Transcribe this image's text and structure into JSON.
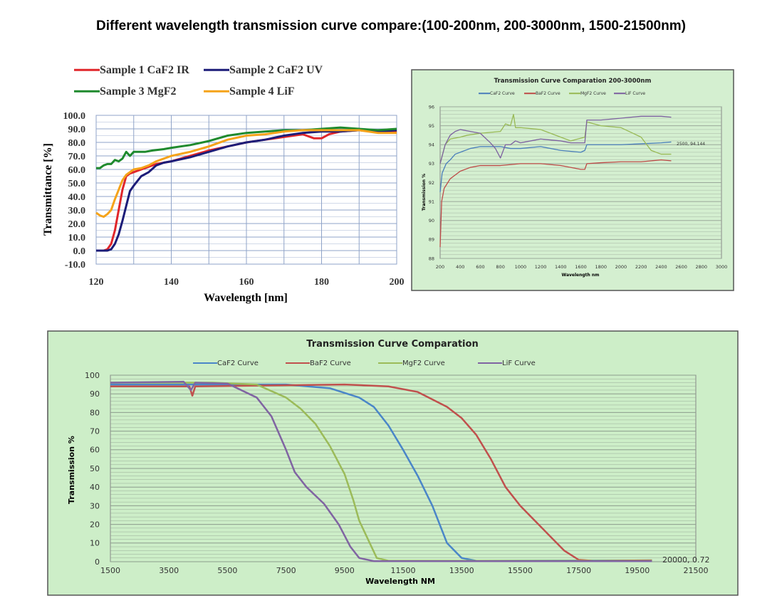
{
  "page_title": "Different wavelength transmission curve compare:(100-200nm, 200-3000nm, 1500-21500nm)",
  "chart_data": [
    {
      "type": "line",
      "title": "",
      "xlabel": "Wavelength [nm]",
      "ylabel": "Transmittance [%]",
      "xlim": [
        120,
        200
      ],
      "ylim": [
        -10,
        100
      ],
      "xticks": [
        120,
        140,
        160,
        180,
        200
      ],
      "yticks": [
        "100.0",
        "90.0",
        "80.0",
        "70.0",
        "60.0",
        "50.0",
        "40.0",
        "30.0",
        "20.0",
        "10.0",
        "0.0",
        "-10.0"
      ],
      "legend": "top",
      "grid": true,
      "series": [
        {
          "name": "Sample 1 CaF2 IR",
          "color": "#e0262a",
          "x": [
            120,
            122,
            123,
            124,
            125,
            126,
            127,
            128,
            129,
            130,
            132,
            134,
            136,
            138,
            140,
            145,
            150,
            155,
            160,
            165,
            170,
            175,
            178,
            180,
            182,
            185,
            190,
            195,
            200
          ],
          "y": [
            0,
            0,
            1,
            5,
            15,
            30,
            45,
            55,
            57,
            58,
            60,
            62,
            64,
            65,
            66,
            70,
            74,
            77,
            80,
            82,
            84,
            86,
            83,
            83,
            86,
            88,
            89,
            88,
            88
          ]
        },
        {
          "name": "Sample 2 CaF2 UV",
          "color": "#1c1c78",
          "x": [
            120,
            123,
            124,
            125,
            126,
            127,
            128,
            129,
            130,
            132,
            134,
            136,
            138,
            140,
            145,
            150,
            155,
            160,
            165,
            170,
            175,
            180,
            185,
            190,
            195,
            200
          ],
          "y": [
            0,
            0,
            1,
            5,
            12,
            22,
            33,
            44,
            48,
            55,
            58,
            63,
            65,
            66,
            69,
            73,
            77,
            80,
            82,
            85,
            87,
            88,
            88,
            89,
            88,
            89
          ]
        },
        {
          "name": "Sample 3 MgF2",
          "color": "#1f8a2e",
          "x": [
            120,
            121,
            122,
            123,
            124,
            125,
            126,
            127,
            128,
            129,
            130,
            133,
            135,
            138,
            140,
            145,
            150,
            155,
            160,
            165,
            170,
            175,
            180,
            185,
            190,
            195,
            200
          ],
          "y": [
            61,
            61,
            63,
            64,
            64,
            67,
            66,
            68,
            73,
            70,
            73,
            73,
            74,
            75,
            76,
            78,
            81,
            85,
            87,
            88,
            89,
            89,
            90,
            91,
            90,
            89,
            90
          ]
        },
        {
          "name": "Sample 4 LiF",
          "color": "#f5a31a",
          "x": [
            120,
            121,
            122,
            123,
            124,
            125,
            126,
            127,
            128,
            130,
            132,
            134,
            136,
            138,
            140,
            145,
            150,
            155,
            160,
            165,
            170,
            175,
            180,
            185,
            190,
            195,
            200
          ],
          "y": [
            28,
            26,
            25,
            27,
            30,
            38,
            45,
            52,
            56,
            60,
            61,
            63,
            66,
            68,
            70,
            73,
            77,
            82,
            85,
            86,
            88,
            89,
            89,
            89,
            89,
            87,
            87
          ]
        }
      ]
    },
    {
      "type": "line",
      "title": "Transmission Curve Comparation 200-3000nm",
      "xlabel": "Wavelength nm",
      "ylabel": "Transmission %",
      "xlim": [
        200,
        3000
      ],
      "ylim": [
        88,
        96
      ],
      "xticks": [
        200,
        400,
        600,
        800,
        1000,
        1200,
        1400,
        1600,
        1800,
        2000,
        2200,
        2400,
        2600,
        2800,
        3000
      ],
      "yticks": [
        88,
        89,
        90,
        91,
        92,
        93,
        94,
        95,
        96
      ],
      "legend": "top",
      "grid": true,
      "annotation": "2500, 94.144",
      "series": [
        {
          "name": "CaF2 Curve",
          "color": "#4a7ebb",
          "x": [
            200,
            220,
            260,
            300,
            350,
            400,
            500,
            600,
            700,
            800,
            900,
            1000,
            1200,
            1400,
            1600,
            1640,
            1660,
            1800,
            2000,
            2200,
            2400,
            2500
          ],
          "y": [
            91.5,
            92.5,
            93,
            93.2,
            93.5,
            93.6,
            93.8,
            93.9,
            93.9,
            93.9,
            93.8,
            93.8,
            93.9,
            93.7,
            93.6,
            93.7,
            94,
            94,
            94,
            94.05,
            94.1,
            94.144
          ]
        },
        {
          "name": "BaF2 Curve",
          "color": "#be4b48",
          "x": [
            200,
            215,
            240,
            300,
            400,
            500,
            600,
            800,
            1000,
            1200,
            1400,
            1600,
            1640,
            1660,
            1800,
            2000,
            2200,
            2400,
            2500
          ],
          "y": [
            88.6,
            91,
            91.7,
            92.2,
            92.6,
            92.8,
            92.9,
            92.9,
            93,
            93,
            92.9,
            92.7,
            92.7,
            93,
            93.05,
            93.1,
            93.1,
            93.2,
            93.15
          ]
        },
        {
          "name": "MgF2 Curve",
          "color": "#98b954",
          "x": [
            200,
            250,
            300,
            400,
            470,
            600,
            800,
            850,
            900,
            930,
            950,
            1000,
            1200,
            1400,
            1500,
            1640,
            1660,
            1800,
            2000,
            2200,
            2300,
            2400,
            2500
          ],
          "y": [
            93,
            94,
            94.3,
            94.4,
            94.5,
            94.6,
            94.7,
            95.1,
            95,
            95.6,
            94.9,
            94.9,
            94.8,
            94.4,
            94.2,
            94.4,
            95.2,
            95,
            94.9,
            94.4,
            93.7,
            93.5,
            93.5
          ]
        },
        {
          "name": "LiF Curve",
          "color": "#7d60a0",
          "x": [
            200,
            250,
            300,
            350,
            400,
            500,
            600,
            700,
            750,
            800,
            850,
            900,
            950,
            1000,
            1100,
            1200,
            1400,
            1500,
            1640,
            1660,
            1800,
            2000,
            2200,
            2400,
            2500
          ],
          "y": [
            93,
            94,
            94.5,
            94.7,
            94.8,
            94.7,
            94.6,
            94.1,
            93.8,
            93.3,
            94,
            94,
            94.2,
            94.1,
            94.2,
            94.3,
            94.2,
            94.1,
            94.1,
            95.3,
            95.3,
            95.4,
            95.5,
            95.5,
            95.45
          ]
        }
      ]
    },
    {
      "type": "line",
      "title": "Transmission Curve Comparation",
      "xlabel": "Wavelength NM",
      "ylabel": "Transmission %",
      "xlim": [
        1500,
        21500
      ],
      "ylim": [
        0,
        100
      ],
      "xticks": [
        1500,
        3500,
        5500,
        7500,
        9500,
        11500,
        13500,
        15500,
        17500,
        19500,
        21500
      ],
      "yticks": [
        0,
        10,
        20,
        30,
        40,
        50,
        60,
        70,
        80,
        90,
        100
      ],
      "legend": "top",
      "grid": true,
      "annotation": "20000, 0.72",
      "series": [
        {
          "name": "CaF2 Curve",
          "color": "#4a86c8",
          "x": [
            1500,
            7500,
            9000,
            10000,
            10500,
            11000,
            11500,
            12000,
            12500,
            13000,
            13500,
            14000,
            20000
          ],
          "y": [
            95,
            95,
            93,
            88,
            83,
            73,
            60,
            46,
            30,
            10,
            2,
            0.5,
            0.7
          ]
        },
        {
          "name": "BaF2 Curve",
          "color": "#c0504d",
          "x": [
            1500,
            4200,
            4300,
            4400,
            9500,
            11000,
            12000,
            13000,
            13500,
            14000,
            14500,
            15000,
            15500,
            16000,
            16500,
            17000,
            17500,
            18000,
            20000
          ],
          "y": [
            94,
            94,
            89,
            94,
            95,
            94,
            91,
            83,
            77,
            68,
            55,
            40,
            30,
            22,
            14,
            6,
            1,
            0.5,
            0.72
          ]
        },
        {
          "name": "MgF2 Curve",
          "color": "#9bbb59",
          "x": [
            1500,
            5000,
            6500,
            7500,
            8000,
            8500,
            9000,
            9500,
            9800,
            10000,
            10300,
            10600,
            11000,
            20000
          ],
          "y": [
            96,
            96,
            95,
            88,
            82,
            74,
            62,
            47,
            33,
            22,
            12,
            2,
            0.5,
            0.5
          ]
        },
        {
          "name": "LiF Curve",
          "color": "#8064a2",
          "x": [
            1500,
            4000,
            4250,
            4400,
            5500,
            6500,
            7000,
            7500,
            7800,
            8200,
            8800,
            9300,
            9700,
            10000,
            10500,
            20000
          ],
          "y": [
            96,
            96.5,
            92,
            96,
            95.5,
            88,
            78,
            60,
            48,
            40,
            31,
            20,
            8,
            2,
            0.3,
            0.3
          ]
        }
      ]
    }
  ]
}
